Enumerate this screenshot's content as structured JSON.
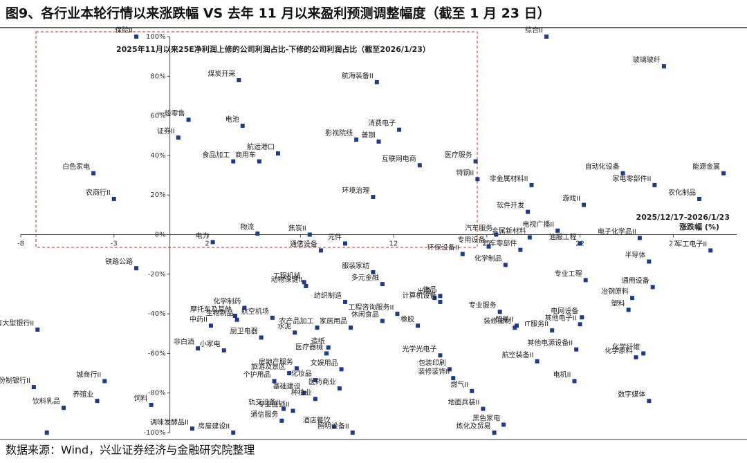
{
  "chart_data": {
    "type": "scatter",
    "title": "图9、各行业本轮行情以来涨跌幅 VS 去年 11 月以来盈利预测调整幅度（截至 1 月 23 日）",
    "source": "数据来源：Wind，兴业证券经济与金融研究院整理",
    "y_label": "2025年11月以来25E净利润上修的公司利润占比-下修的公司利润占比（截至2026/1/23）",
    "x_label": [
      "2025/12/17-2026/1/23",
      "涨跌幅 (%)"
    ],
    "color": "#1f3a8a",
    "xlim": [
      -8,
      30.4
    ],
    "ylim": [
      -100,
      100
    ],
    "xticks": [
      -8,
      -3,
      2,
      7,
      12,
      17,
      22,
      27
    ],
    "yticks": [
      {
        "value": -100,
        "label": "-100%"
      },
      {
        "value": -80,
        "label": "-80%"
      },
      {
        "value": -60,
        "label": "-60%"
      },
      {
        "value": -40,
        "label": "-40%"
      },
      {
        "value": -20,
        "label": "-20%"
      },
      {
        "value": 0,
        "label": "0%"
      },
      {
        "value": 20,
        "label": "20%"
      },
      {
        "value": 40,
        "label": "40%"
      },
      {
        "value": 60,
        "label": "60%"
      },
      {
        "value": 80,
        "label": "80%"
      },
      {
        "value": 100,
        "label": "100%"
      }
    ],
    "categories": [
      "保险II",
      "综合II",
      "玻璃玻纤",
      "煤炭开采",
      "航海装备II",
      "一般零售",
      "证券II",
      "电池",
      "消费电子",
      "影视院线",
      "普钢",
      "航运港口",
      "食品加工",
      "商用车",
      "互联网电商",
      "医疗服务",
      "白色家电",
      "特钢II",
      "农商行II",
      "环境治理",
      "自动化设备",
      "能源金属",
      "非金属材料II",
      "家电零部件II",
      "农化制品",
      "游戏II",
      "软件开发",
      "汽车服务",
      "金属新材料",
      "电视广播II",
      "油服工程",
      "电子化学品II",
      "军工电子II",
      "专用设备",
      "汽车零部件",
      "半导体",
      "电力",
      "物流",
      "焦炭II",
      "通信设备",
      "元件",
      "环保设备II",
      "化学制品",
      "铁路公路",
      "服装家纺",
      "多元金融",
      "工程机械",
      "动物保健II",
      "专业工程",
      "通用设备",
      "冶钢原料",
      "饰品",
      "出版",
      "计算机设备",
      "纺织制造",
      "化学制药",
      "航空机场",
      "工程咨询服务II",
      "橡胶",
      "专业服务",
      "摩托车及其他",
      "生物制品",
      "中药II",
      "农产品加工",
      "休闲食品",
      "家居用品",
      "电网设备",
      "贸易II",
      "其他电子II",
      "IT服务II",
      "装修建材",
      "塑料",
      "国有大型银行II",
      "非白酒",
      "小家电",
      "厨卫电器",
      "水泥",
      "造纸",
      "医疗器械",
      "其他电源设备II",
      "化学纤维",
      "化学原料",
      "光学光电子",
      "文娱用品",
      "房地产服务",
      "包装印刷",
      "航空装备II",
      "旅游及景区",
      "个护用品",
      "化妆品",
      "股份制银行II",
      "城商行II",
      "装修装饰II",
      "电机II",
      "基础建设",
      "医药商业",
      "燃气II",
      "养殖业",
      "饮料乳品",
      "饲料",
      "种植业",
      "轨交设备II",
      "专业连锁II",
      "数字媒体",
      "地面兵装II",
      "通信服务",
      "酒店餐饮",
      "照明设备II",
      "调味发酵品II",
      "房屋建设II",
      "炼化及贸易",
      "黑色家电",
      null
    ],
    "x": [
      -1.8,
      20.2,
      26.5,
      3.7,
      11.1,
      1.0,
      0.45,
      3.9,
      12.3,
      10.0,
      11.2,
      5.8,
      3.4,
      4.8,
      13.4,
      16.4,
      -4.1,
      16.5,
      -3.0,
      10.9,
      24.3,
      29.7,
      19.4,
      26.0,
      28.4,
      22.2,
      19.2,
      17.5,
      19.3,
      20.8,
      22.0,
      25.2,
      29.0,
      17.1,
      18.8,
      25.7,
      2.3,
      4.7,
      7.5,
      8.1,
      9.4,
      15.7,
      18.0,
      -1.8,
      10.9,
      11.4,
      7.2,
      7.3,
      22.3,
      25.9,
      24.8,
      14.5,
      14.2,
      14.5,
      9.4,
      4.0,
      5.5,
      12.2,
      13.3,
      17.7,
      3.5,
      3.6,
      2.2,
      7.9,
      11.4,
      9.7,
      22.1,
      18.6,
      22.0,
      20.5,
      18.5,
      24.6,
      -7.1,
      1.5,
      2.9,
      4.9,
      6.7,
      8.5,
      8.4,
      21.8,
      25.4,
      25.0,
      14.5,
      9.2,
      6.8,
      15.0,
      19.7,
      6.4,
      5.6,
      7.8,
      -7.3,
      -3.5,
      15.2,
      21.7,
      7.2,
      9.1,
      16.2,
      -3.9,
      -5.7,
      -1.0,
      7.8,
      6.1,
      6.6,
      25.7,
      16.8,
      6.0,
      8.8,
      9.8,
      1.2,
      3.4,
      17.4,
      17.9,
      -6.6
    ],
    "values": [
      100,
      100,
      85,
      78,
      77,
      58,
      49,
      55,
      53,
      48,
      47,
      41,
      37,
      37,
      35,
      37,
      31,
      28,
      18,
      19,
      31,
      31,
      25,
      25,
      18,
      15,
      11.5,
      0,
      -1.4,
      2,
      -4.5,
      -1.7,
      -8,
      -6,
      -7.7,
      -13.6,
      -3.8,
      0.5,
      0,
      -8,
      -4.5,
      -9.8,
      -15.3,
      -17,
      -19,
      -25,
      -24,
      -26,
      -23,
      -26.5,
      -32,
      -31,
      -32,
      -34,
      -34,
      -37,
      -42,
      -40,
      -46,
      -39,
      -41,
      -43,
      -46,
      -47,
      -43.6,
      -47,
      -41.8,
      -46,
      -45.3,
      -48.4,
      -47,
      -38,
      -48,
      -57.5,
      -58.5,
      -52,
      -49.5,
      -57,
      -60,
      -58,
      -60,
      -62,
      -61,
      -68,
      -67.6,
      -68,
      -64,
      -70,
      -74,
      -73.5,
      -77,
      -74,
      -72.5,
      -74,
      -80,
      -77.7,
      -79,
      -84,
      -87.5,
      -86,
      -83,
      -88,
      -89,
      -84,
      -88,
      -94,
      -97,
      -100,
      -98,
      -100,
      -100,
      -96,
      -100
    ]
  }
}
